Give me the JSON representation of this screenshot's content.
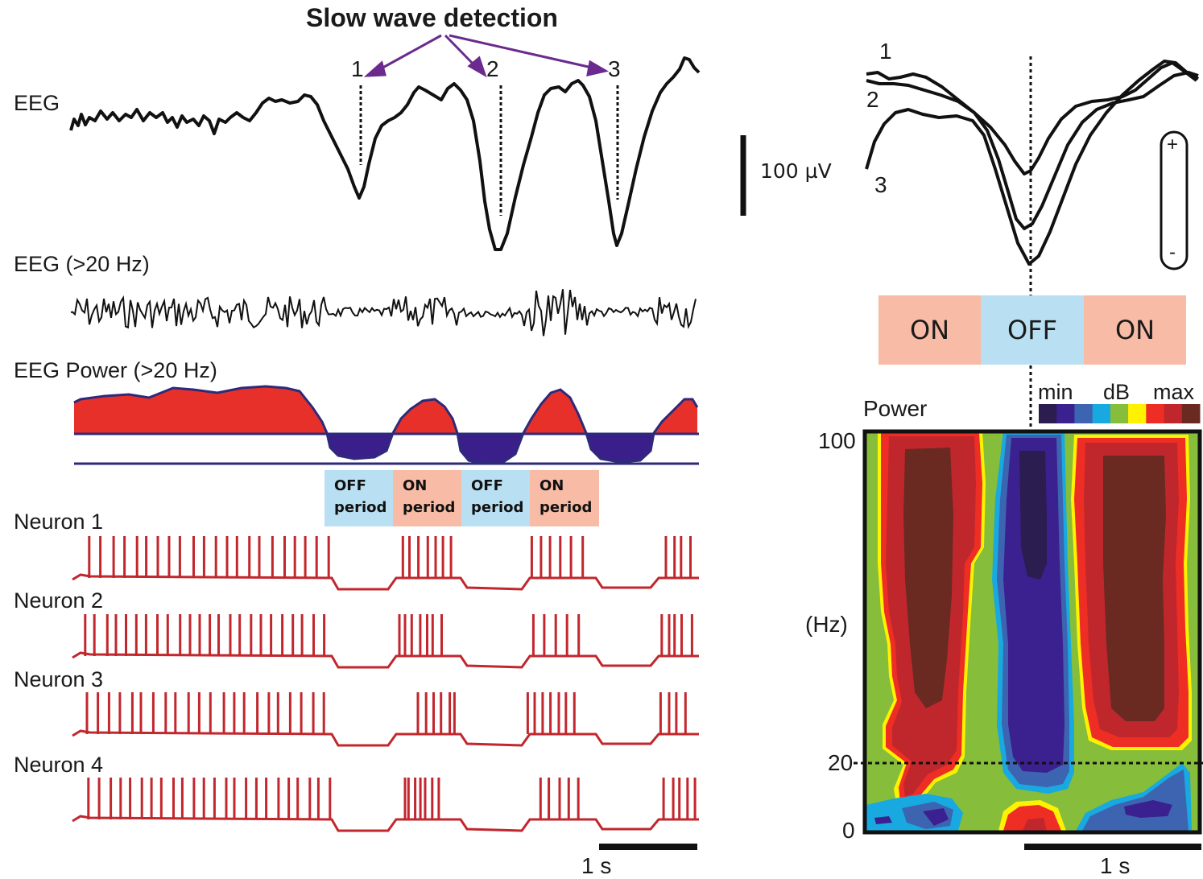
{
  "title": "Slow wave detection",
  "waves": [
    "1",
    "2",
    "3"
  ],
  "traces": {
    "eeg": "EEG",
    "eeg_hf": "EEG (>20 Hz)",
    "eeg_power": "EEG Power (>20 Hz)",
    "neurons": [
      "Neuron 1",
      "Neuron 2",
      "Neuron 3",
      "Neuron 4"
    ]
  },
  "periods": [
    {
      "line1": "OFF",
      "line2": "period",
      "color": "#b9e0f2"
    },
    {
      "line1": "ON",
      "line2": "period",
      "color": "#f8bba5"
    },
    {
      "line1": "OFF",
      "line2": "period",
      "color": "#b9e0f2"
    },
    {
      "line1": "ON",
      "line2": "period",
      "color": "#f8bba5"
    }
  ],
  "scalebars": {
    "voltage": "100 µV",
    "time_left": "1 s",
    "time_right": "1 s"
  },
  "overlay": {
    "labels": [
      "1",
      "2",
      "3"
    ],
    "plus": "+",
    "minus": "-"
  },
  "states": [
    "ON",
    "OFF",
    "ON"
  ],
  "spectrogram": {
    "title": "Power",
    "ylabel": "(Hz)",
    "yticks": [
      "100",
      "20",
      "0"
    ],
    "colorbar": {
      "min": "min",
      "unit": "dB",
      "max": "max",
      "colors": [
        "#2b1d4f",
        "#3b2090",
        "#3d64b0",
        "#18a9e0",
        "#86bd3a",
        "#fff200",
        "#ee2d24",
        "#c0272d",
        "#6a2a22"
      ]
    }
  },
  "colors": {
    "trace": "#111111",
    "spike": "#c1272d",
    "power_on": "#e8302a",
    "power_off": "#3a1f8a",
    "on_box": "#f8bba5",
    "off_box": "#b9e0f2"
  }
}
